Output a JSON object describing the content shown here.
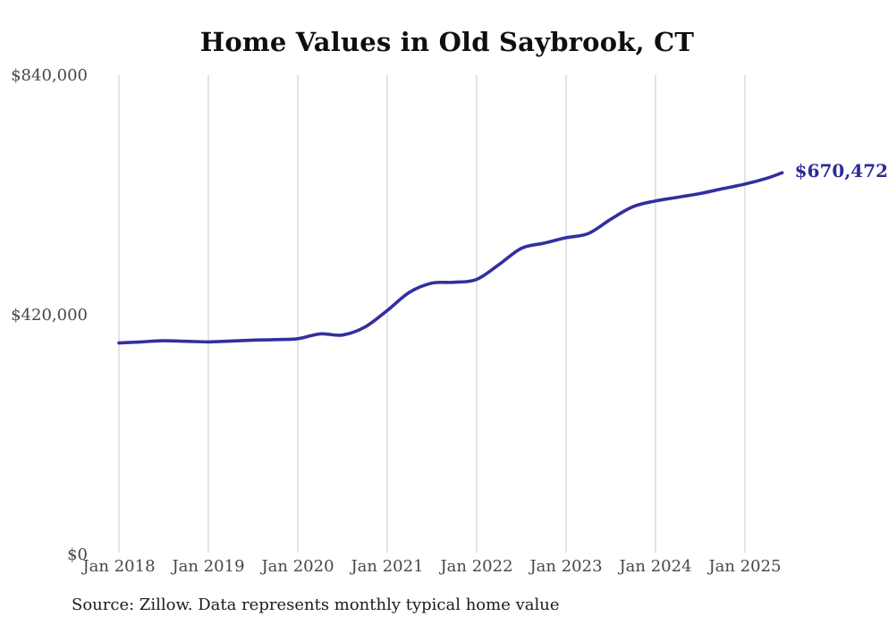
{
  "chart": {
    "title": "Home Values in Old Saybrook, CT",
    "end_label": "$670,472",
    "source": "Source: Zillow. Data represents monthly typical home value",
    "colors": {
      "line": "#32309d",
      "end_label": "#2e2c96",
      "gridline": "#c9c9c9",
      "axis_text": "#474747",
      "title_text": "#0f0f0f",
      "source_text": "#1c1c1c"
    }
  },
  "chart_data": {
    "type": "line",
    "title": "Home Values in Old Saybrook, CT",
    "xlabel": "",
    "ylabel": "",
    "ylim": [
      0,
      840000
    ],
    "grid": "vertical-only",
    "legend": "none",
    "y_ticks": [
      {
        "value": 0,
        "label": "$0"
      },
      {
        "value": 420000,
        "label": "$420,000"
      },
      {
        "value": 840000,
        "label": "$840,000"
      }
    ],
    "x_ticks": [
      {
        "month_index": 0,
        "label": "Jan 2018"
      },
      {
        "month_index": 12,
        "label": "Jan 2019"
      },
      {
        "month_index": 24,
        "label": "Jan 2020"
      },
      {
        "month_index": 36,
        "label": "Jan 2021"
      },
      {
        "month_index": 48,
        "label": "Jan 2022"
      },
      {
        "month_index": 60,
        "label": "Jan 2023"
      },
      {
        "month_index": 72,
        "label": "Jan 2024"
      },
      {
        "month_index": 84,
        "label": "Jan 2025"
      }
    ],
    "series": [
      {
        "name": "Typical home value",
        "points": [
          {
            "date": "2018-01",
            "value": 372000
          },
          {
            "date": "2018-04",
            "value": 374000
          },
          {
            "date": "2018-07",
            "value": 376000
          },
          {
            "date": "2018-10",
            "value": 375000
          },
          {
            "date": "2019-01",
            "value": 374000
          },
          {
            "date": "2019-04",
            "value": 375500
          },
          {
            "date": "2019-07",
            "value": 377000
          },
          {
            "date": "2019-10",
            "value": 378000
          },
          {
            "date": "2020-01",
            "value": 379500
          },
          {
            "date": "2020-04",
            "value": 388000
          },
          {
            "date": "2020-07",
            "value": 386000
          },
          {
            "date": "2020-10",
            "value": 400000
          },
          {
            "date": "2021-01",
            "value": 429000
          },
          {
            "date": "2021-04",
            "value": 461000
          },
          {
            "date": "2021-07",
            "value": 477000
          },
          {
            "date": "2021-10",
            "value": 478500
          },
          {
            "date": "2022-01",
            "value": 483500
          },
          {
            "date": "2022-04",
            "value": 509500
          },
          {
            "date": "2022-07",
            "value": 538000
          },
          {
            "date": "2022-10",
            "value": 547000
          },
          {
            "date": "2023-01",
            "value": 556500
          },
          {
            "date": "2023-04",
            "value": 564000
          },
          {
            "date": "2023-07",
            "value": 589000
          },
          {
            "date": "2023-10",
            "value": 611000
          },
          {
            "date": "2024-01",
            "value": 621000
          },
          {
            "date": "2024-04",
            "value": 627500
          },
          {
            "date": "2024-07",
            "value": 634000
          },
          {
            "date": "2024-10",
            "value": 642500
          },
          {
            "date": "2025-01",
            "value": 650500
          },
          {
            "date": "2025-04",
            "value": 661000
          },
          {
            "date": "2025-06",
            "value": 670472
          }
        ]
      }
    ]
  }
}
